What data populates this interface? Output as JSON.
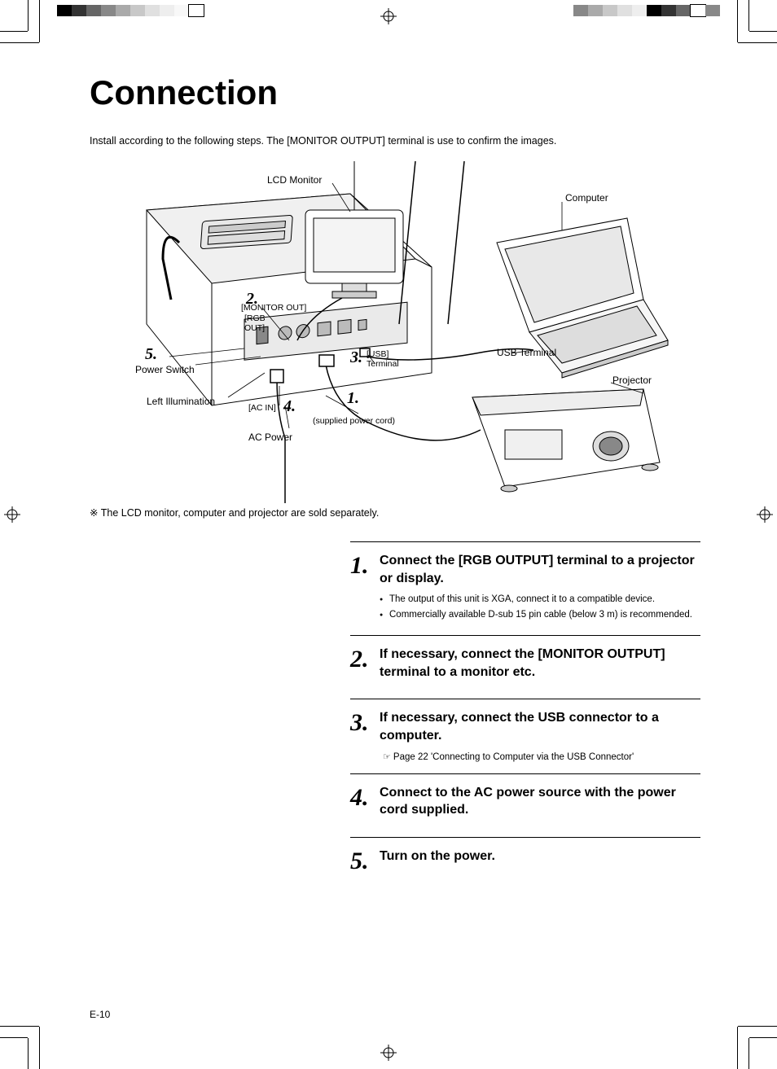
{
  "title": "Connection",
  "intro": "Install according to the following steps. The [MONITOR OUTPUT] terminal is use to confirm the images.",
  "note_prefix": "※",
  "note": "The LCD monitor, computer and projector are sold separately.",
  "page_number": "E-10",
  "diagram": {
    "labels": {
      "lcd_monitor": "LCD Monitor",
      "computer": "Computer",
      "usb_terminal": "USB Terminal",
      "projector": "Projector",
      "power_switch": "Power Switch",
      "left_illumination": "Left Illumination",
      "ac_in": "[AC IN]",
      "ac_power": "AC Power",
      "supplied_power_cord": "(supplied power cord)",
      "monitor_out": "[MONITOR OUT]",
      "rgb_out_l1": "[RGB",
      "rgb_out_l2": "OUT]",
      "usb": "[USB]",
      "terminal": "Terminal"
    },
    "step_callouts": {
      "s1": "1.",
      "s2": "2.",
      "s3": "3.",
      "s4": "4.",
      "s5": "5."
    },
    "colors": {
      "line": "#000000",
      "fill": "#ffffff",
      "shade": "#bfbfbf"
    }
  },
  "steps": [
    {
      "num": "1.",
      "title": "Connect the [RGB OUTPUT] terminal to a projector or display.",
      "bullets": [
        "The output of this unit is XGA, connect it to a compatible device.",
        "Commercially available D-sub 15 pin cable (below 3 m) is recommended."
      ]
    },
    {
      "num": "2.",
      "title": "If necessary, connect the [MONITOR OUTPUT] terminal to a monitor etc."
    },
    {
      "num": "3.",
      "title": "If necessary, connect the USB connector to a computer.",
      "ref": "Page 22 'Connecting to Computer via the USB Connector'"
    },
    {
      "num": "4.",
      "title": "Connect to the AC power source with the power cord supplied."
    },
    {
      "num": "5.",
      "title": "Turn on the power."
    }
  ],
  "colorbars": {
    "left": [
      "#000000",
      "#333333",
      "#666666",
      "#888888",
      "#aaaaaa",
      "#c8c8c8",
      "#e0e0e0",
      "#eeeeee",
      "#f8f8f8",
      "#ffffff"
    ],
    "right": [
      "#888888",
      "#aaaaaa",
      "#c8c8c8",
      "#e0e0e0",
      "#eeeeee",
      "#000000",
      "#333333",
      "#666666",
      "#ffffff",
      "#888888"
    ]
  }
}
